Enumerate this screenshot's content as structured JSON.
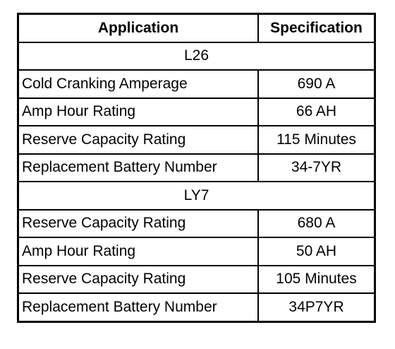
{
  "table": {
    "header": [
      "Application",
      "Specification"
    ],
    "sections": [
      {
        "title": "L26",
        "rows": [
          [
            "Cold Cranking Amperage",
            "690 A"
          ],
          [
            "Amp Hour Rating",
            "66 AH"
          ],
          [
            "Reserve Capacity Rating",
            "115 Minutes"
          ],
          [
            "Replacement Battery Number",
            "34-7YR"
          ]
        ]
      },
      {
        "title": "LY7",
        "rows": [
          [
            "Reserve Capacity Rating",
            "680 A"
          ],
          [
            "Amp Hour Rating",
            "50 AH"
          ],
          [
            "Reserve Capacity Rating",
            "105 Minutes"
          ],
          [
            "Replacement Battery Number",
            "34P7YR"
          ]
        ]
      }
    ]
  }
}
